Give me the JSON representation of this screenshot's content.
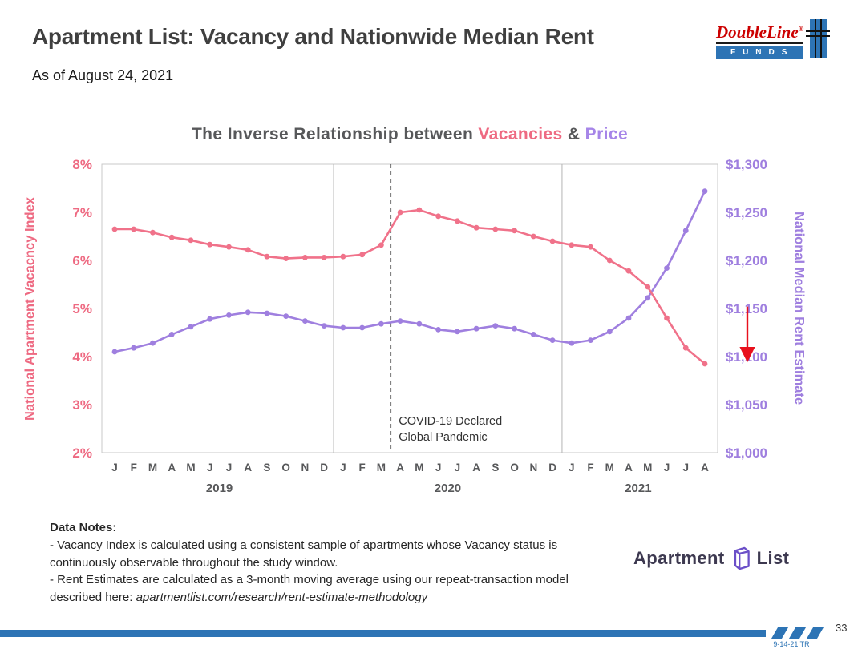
{
  "slide": {
    "title": "Apartment List: Vacancy and Nationwide Median Rent",
    "subtitle": "As of August 24, 2021",
    "page_number": "33",
    "date_code": "9-14-21 TR"
  },
  "doubleline_logo": {
    "name": "DoubleLine",
    "reg": "®",
    "funds_letters": "FUNDS"
  },
  "chart_data": {
    "type": "line",
    "title": {
      "prefix": "The Inverse Relationship between ",
      "highlight1": "Vacancies",
      "separator": " & ",
      "highlight2": "Price"
    },
    "x_labels": [
      "J",
      "F",
      "M",
      "A",
      "M",
      "J",
      "J",
      "A",
      "S",
      "O",
      "N",
      "D",
      "J",
      "F",
      "M",
      "A",
      "M",
      "J",
      "J",
      "A",
      "S",
      "O",
      "N",
      "D",
      "J",
      "F",
      "M",
      "A",
      "M",
      "J",
      "J",
      "A"
    ],
    "year_groups": [
      {
        "label": "2019",
        "start": 0,
        "end": 11
      },
      {
        "label": "2020",
        "start": 12,
        "end": 23
      },
      {
        "label": "2021",
        "start": 24,
        "end": 31
      }
    ],
    "year_separators": [
      11.5,
      23.5
    ],
    "left_axis": {
      "label": "National Apartment Vacacncy Index",
      "ticks": [
        "8%",
        "7%",
        "6%",
        "5%",
        "4%",
        "3%",
        "2%"
      ],
      "min": 2,
      "max": 8,
      "color": "#ee6a82"
    },
    "right_axis": {
      "label": "National Median Rent Estimate",
      "ticks": [
        "$1,300",
        "$1,250",
        "$1,200",
        "$1,150",
        "$1,100",
        "$1,050",
        "$1,000"
      ],
      "min": 1000,
      "max": 1300,
      "color": "#9f7fdf"
    },
    "series": [
      {
        "name": "National Median Rent Estimate",
        "axis": "right",
        "color": "#9f7fdf",
        "values": [
          1105,
          1109,
          1114,
          1123,
          1131,
          1139,
          1143,
          1146,
          1145,
          1142,
          1137,
          1132,
          1130,
          1130,
          1134,
          1137,
          1134,
          1128,
          1126,
          1129,
          1132,
          1129,
          1123,
          1117,
          1114,
          1117,
          1126,
          1140,
          1161,
          1192,
          1231,
          1272
        ]
      },
      {
        "name": "National Apartment Vacancy Index",
        "axis": "left",
        "color": "#f0728a",
        "values": [
          6.65,
          6.65,
          6.58,
          6.48,
          6.42,
          6.33,
          6.28,
          6.22,
          6.08,
          6.04,
          6.06,
          6.06,
          6.08,
          6.12,
          6.32,
          7.0,
          7.05,
          6.92,
          6.82,
          6.68,
          6.65,
          6.62,
          6.5,
          6.4,
          6.32,
          6.28,
          6.0,
          5.78,
          5.45,
          4.8,
          4.18,
          3.85
        ]
      }
    ],
    "covid_line_x": 14.5,
    "annotation": [
      "COVID-19 Declared",
      "Global Pandemic"
    ],
    "arrow": {
      "from_value": 1152,
      "to_value": 1098,
      "color": "#e8101c"
    },
    "grid": "off",
    "legend": "none"
  },
  "data_notes": {
    "heading": "Data Notes:",
    "line1": "- Vacancy Index is calculated using a consistent sample of apartments whose Vacancy status is continuously observable throughout the study window.",
    "line2_prefix": "- Rent Estimates are calculated as a 3-month moving average using our repeat-transaction model described here: ",
    "line2_link": "apartmentlist.com/research/rent-estimate-methodology"
  },
  "apartment_list_logo": {
    "word1": "Apartment",
    "word2": "List"
  }
}
